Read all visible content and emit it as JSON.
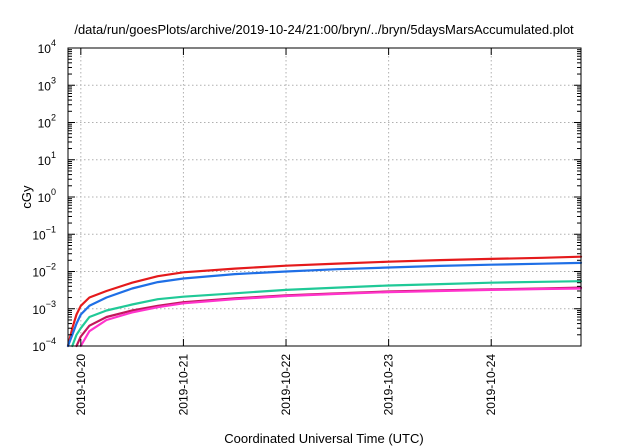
{
  "chart_data": {
    "type": "line",
    "title": "/data/run/goesPlots/archive/2019-10-24/21:00/bryn/../bryn/5daysMarsAccumulated.plot",
    "xlabel": "Coordinated Universal Time (UTC)",
    "ylabel": "cGy",
    "xscale": "date",
    "xlim": [
      "2019-10-19 21:00",
      "2019-10-24 21:00"
    ],
    "xticks": [
      "2019-10-20",
      "2019-10-21",
      "2019-10-22",
      "2019-10-23",
      "2019-10-24"
    ],
    "yscale": "log",
    "ylim": [
      0.0001,
      10000
    ],
    "yticks": [
      {
        "base": "10",
        "exp": "-4"
      },
      {
        "base": "10",
        "exp": "-3"
      },
      {
        "base": "10",
        "exp": "-2"
      },
      {
        "base": "10",
        "exp": "-1"
      },
      {
        "base": "10",
        "exp": "0"
      },
      {
        "base": "10",
        "exp": "1"
      },
      {
        "base": "10",
        "exp": "2"
      },
      {
        "base": "10",
        "exp": "3"
      },
      {
        "base": "10",
        "exp": "4"
      }
    ],
    "grid": true,
    "legend": "none",
    "series": [
      {
        "color": "#e41a1c",
        "x": [
          "2019-10-19 21:00",
          "2019-10-19 22:00",
          "2019-10-19 23:00",
          "2019-10-20 00:00",
          "2019-10-20 02:00",
          "2019-10-20 06:00",
          "2019-10-20 12:00",
          "2019-10-20 18:00",
          "2019-10-21 00:00",
          "2019-10-21 12:00",
          "2019-10-22 00:00",
          "2019-10-22 12:00",
          "2019-10-23 00:00",
          "2019-10-23 12:00",
          "2019-10-24 00:00",
          "2019-10-24 12:00",
          "2019-10-24 21:00"
        ],
        "y": [
          0.0001,
          0.0003,
          0.0007,
          0.0012,
          0.002,
          0.003,
          0.005,
          0.0075,
          0.0095,
          0.012,
          0.0143,
          0.0163,
          0.0183,
          0.0202,
          0.0218,
          0.0233,
          0.025
        ]
      },
      {
        "color": "#1f6fe6",
        "x": [
          "2019-10-19 21:00",
          "2019-10-19 22:00",
          "2019-10-19 23:00",
          "2019-10-20 00:00",
          "2019-10-20 02:00",
          "2019-10-20 06:00",
          "2019-10-20 12:00",
          "2019-10-20 18:00",
          "2019-10-21 00:00",
          "2019-10-21 12:00",
          "2019-10-22 00:00",
          "2019-10-22 12:00",
          "2019-10-23 00:00",
          "2019-10-23 12:00",
          "2019-10-24 00:00",
          "2019-10-24 12:00",
          "2019-10-24 21:00"
        ],
        "y": [
          0.0001,
          0.0002,
          0.0004,
          0.0007,
          0.0012,
          0.002,
          0.0035,
          0.0052,
          0.0065,
          0.0085,
          0.01,
          0.0115,
          0.0128,
          0.0141,
          0.0152,
          0.0162,
          0.017
        ]
      },
      {
        "color": "#20c997",
        "x": [
          "2019-10-19 22:00",
          "2019-10-19 23:00",
          "2019-10-20 00:00",
          "2019-10-20 02:00",
          "2019-10-20 06:00",
          "2019-10-20 12:00",
          "2019-10-20 18:00",
          "2019-10-21 00:00",
          "2019-10-21 12:00",
          "2019-10-22 00:00",
          "2019-10-22 12:00",
          "2019-10-23 00:00",
          "2019-10-23 12:00",
          "2019-10-24 00:00",
          "2019-10-24 12:00",
          "2019-10-24 21:00"
        ],
        "y": [
          0.0001,
          0.0002,
          0.0003,
          0.0006,
          0.0009,
          0.0013,
          0.0018,
          0.0021,
          0.0026,
          0.0032,
          0.0037,
          0.0042,
          0.0046,
          0.005,
          0.0053,
          0.0055
        ]
      },
      {
        "color": "#c2185b",
        "x": [
          "2019-10-19 23:00",
          "2019-10-20 00:00",
          "2019-10-20 02:00",
          "2019-10-20 06:00",
          "2019-10-20 12:00",
          "2019-10-20 18:00",
          "2019-10-21 00:00",
          "2019-10-21 12:00",
          "2019-10-22 00:00",
          "2019-10-22 12:00",
          "2019-10-23 00:00",
          "2019-10-23 12:00",
          "2019-10-24 00:00",
          "2019-10-24 12:00",
          "2019-10-24 21:00"
        ],
        "y": [
          0.0001,
          0.00018,
          0.00035,
          0.0006,
          0.0009,
          0.0012,
          0.0015,
          0.0019,
          0.0023,
          0.0026,
          0.0029,
          0.0031,
          0.0033,
          0.0035,
          0.0037
        ]
      },
      {
        "color": "#ff33cc",
        "x": [
          "2019-10-20 00:00",
          "2019-10-20 02:00",
          "2019-10-20 06:00",
          "2019-10-20 12:00",
          "2019-10-20 18:00",
          "2019-10-21 00:00",
          "2019-10-21 12:00",
          "2019-10-22 00:00",
          "2019-10-22 12:00",
          "2019-10-23 00:00",
          "2019-10-23 12:00",
          "2019-10-24 00:00",
          "2019-10-24 12:00",
          "2019-10-24 21:00"
        ],
        "y": [
          0.0001,
          0.00025,
          0.0005,
          0.0008,
          0.0011,
          0.0014,
          0.0018,
          0.0022,
          0.0025,
          0.0028,
          0.003,
          0.0032,
          0.0034,
          0.0035
        ]
      }
    ]
  }
}
